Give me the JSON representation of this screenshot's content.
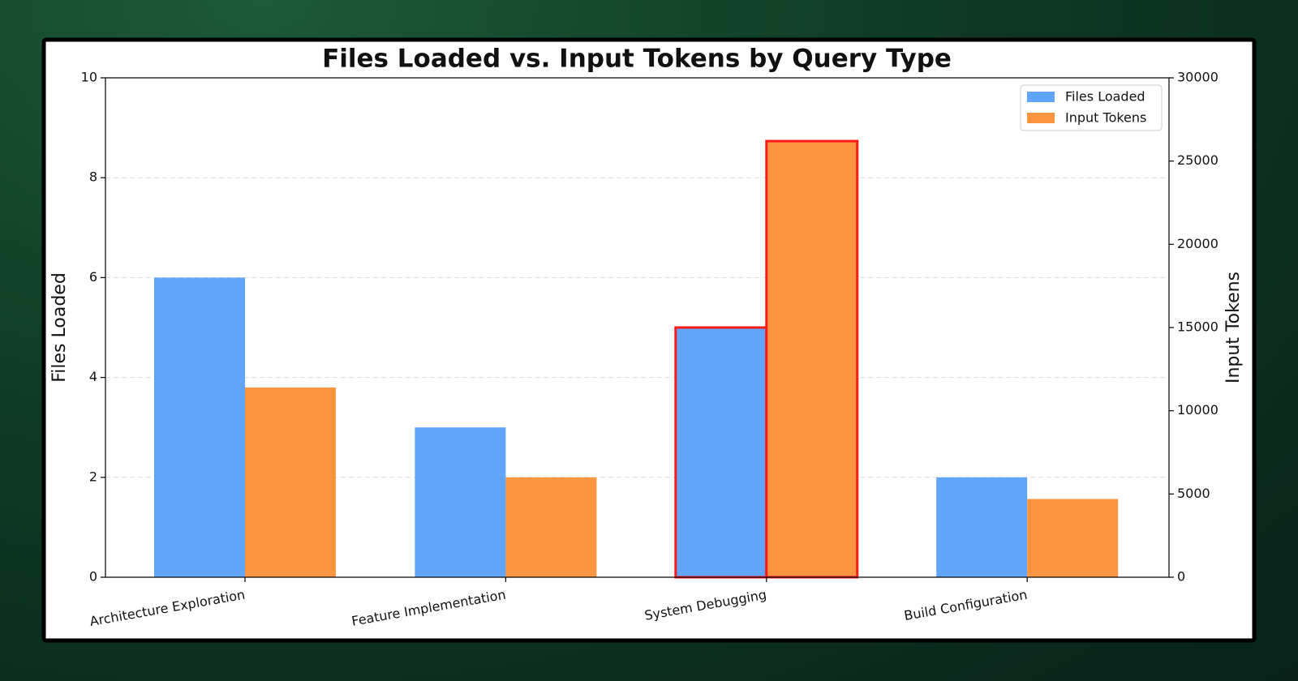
{
  "chart_data": {
    "type": "bar",
    "title": "Files Loaded vs. Input Tokens by Query Type",
    "categories": [
      "Architecture Exploration",
      "Feature Implementation",
      "System Debugging",
      "Build Configuration"
    ],
    "series": [
      {
        "name": "Files Loaded",
        "color": "#61a5fa",
        "values": [
          6,
          3,
          5,
          2
        ]
      },
      {
        "name": "Input Tokens",
        "color": "#fb953f",
        "axis": "y2",
        "values": [
          11400,
          6000,
          26200,
          4700
        ]
      }
    ],
    "ylabel": "Files Loaded",
    "y2label": "Input Tokens",
    "ylim": [
      0,
      10
    ],
    "yticks": [
      0,
      2,
      4,
      6,
      8,
      10
    ],
    "y2lim": [
      0,
      30000
    ],
    "y2ticks": [
      0,
      5000,
      10000,
      15000,
      20000,
      25000,
      30000
    ],
    "grid": true,
    "legend": "upper right",
    "highlight": 2,
    "highlight_color": "#ff1a1a"
  }
}
